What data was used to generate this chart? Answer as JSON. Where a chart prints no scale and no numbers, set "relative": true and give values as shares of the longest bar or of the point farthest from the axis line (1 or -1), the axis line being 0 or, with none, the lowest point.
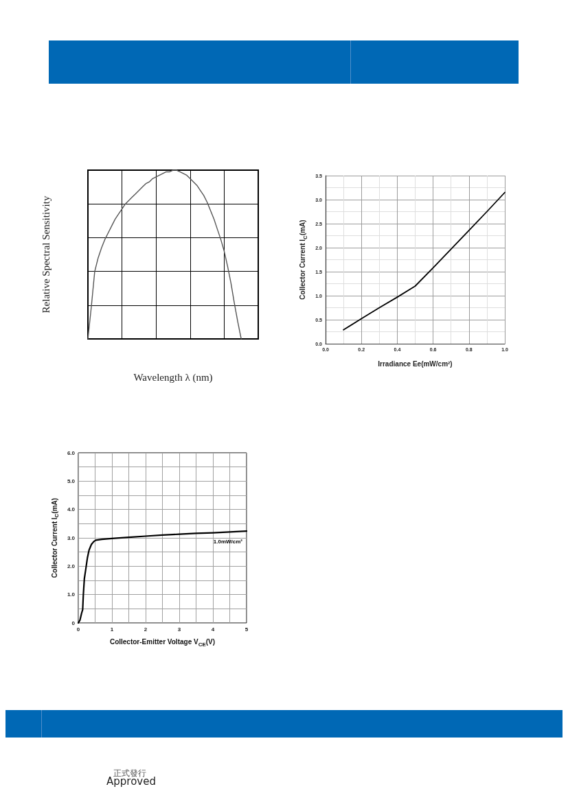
{
  "chart_data": [
    {
      "type": "line",
      "relative": true,
      "xlabel": "Wavelength λ (nm)",
      "ylabel": "Relative Spectral Sensitivity",
      "categories": [
        null,
        null,
        null,
        null,
        null,
        null,
        null,
        null,
        null,
        null,
        null,
        null,
        null,
        null,
        null,
        null,
        null,
        null,
        null,
        null,
        null,
        null,
        null,
        null,
        null,
        null,
        null,
        null,
        null,
        null,
        null,
        null,
        null,
        null,
        null,
        null,
        null,
        null,
        null,
        null,
        null,
        null,
        null,
        null,
        null,
        null,
        null,
        null,
        null,
        null,
        null
      ],
      "values": [
        0,
        0.19,
        0.4,
        0.48,
        0.54,
        0.59,
        0.63,
        0.67,
        0.71,
        0.74,
        0.77,
        0.8,
        0.82,
        0.84,
        0.86,
        0.88,
        0.9,
        0.92,
        0.93,
        0.95,
        0.96,
        0.97,
        0.98,
        0.99,
        0.99,
        1,
        1,
        0.99,
        0.98,
        0.97,
        0.95,
        0.93,
        0.91,
        0.88,
        0.85,
        0.81,
        0.76,
        0.71,
        0.65,
        0.59,
        0.52,
        0.43,
        0.33,
        0.21,
        0.1,
        0,
        null,
        null,
        null,
        null,
        null
      ],
      "color": "#555555",
      "grid": true,
      "marker": "none",
      "line_style": "solid"
    },
    {
      "type": "line",
      "xlabel": "Irradiance Ee(mW/cm²)",
      "ylabel": "Collector Current I$_{C}$(mA)",
      "x": [
        0.1,
        0.2,
        0.3,
        0.4,
        0.5,
        0.6,
        0.7,
        0.8,
        0.9,
        1.0
      ],
      "values": [
        0.29,
        0.52,
        0.75,
        0.97,
        1.2,
        1.58,
        1.97,
        2.36,
        2.75,
        3.15
      ],
      "color": "#000000",
      "xlim": [
        0,
        1
      ],
      "ylim": [
        0,
        3.5
      ],
      "xticks": [
        {
          "value": 0,
          "label": "0.0"
        },
        {
          "value": 0.1,
          "label": null
        },
        0.2,
        {
          "value": 0.3,
          "label": null
        },
        0.4,
        {
          "value": 0.5,
          "label": null
        },
        0.6,
        {
          "value": 0.7,
          "label": null
        },
        0.8,
        {
          "value": 0.9,
          "label": null
        },
        {
          "value": 1,
          "label": "1.0"
        }
      ],
      "yticks": [
        {
          "value": 0,
          "label": "0.0"
        },
        {
          "value": 0.25,
          "label": null
        },
        0.5,
        {
          "value": 0.75,
          "label": null
        },
        {
          "value": 1,
          "label": "1.0"
        },
        {
          "value": 1.25,
          "label": null
        },
        1.5,
        {
          "value": 1.75,
          "label": null
        },
        {
          "value": 2,
          "label": "2.0"
        },
        {
          "value": 2.25,
          "label": null
        },
        2.5,
        {
          "value": 2.75,
          "label": null
        },
        {
          "value": 3,
          "label": "3.0"
        },
        {
          "value": 3.25,
          "label": null
        },
        3.5
      ],
      "grid": true,
      "marker": "none",
      "line_style": "solid"
    },
    {
      "type": "line",
      "xlabel": "Collector-Emitter Voltage V$_{CE}$(V)",
      "ylabel": "Collector Current I$_{C}$(mA)",
      "x": [
        0,
        0.05,
        0.1,
        0.13,
        0.15,
        0.18,
        0.22,
        0.27,
        0.32,
        0.39,
        0.46,
        0.52,
        0.7,
        1,
        1.5,
        2,
        2.5,
        3,
        3.5,
        4,
        4.5,
        5
      ],
      "series": [
        {
          "name": "1.0mW/cm²",
          "color": "#000000",
          "values": [
            0,
            0.1,
            0.35,
            0.47,
            1.0,
            1.56,
            1.88,
            2.29,
            2.57,
            2.77,
            2.87,
            2.92,
            2.95,
            2.98,
            3.02,
            3.06,
            3.1,
            3.13,
            3.16,
            3.18,
            3.21,
            3.24
          ]
        }
      ],
      "xlim": [
        0,
        5
      ],
      "ylim": [
        0,
        6
      ],
      "xticks": [
        0,
        {
          "value": 0.5,
          "label": null
        },
        1,
        {
          "value": 1.5,
          "label": null
        },
        2,
        {
          "value": 2.5,
          "label": null
        },
        3,
        {
          "value": 3.5,
          "label": null
        },
        4,
        {
          "value": 4.5,
          "label": null
        },
        5
      ],
      "yticks": [
        0,
        {
          "value": 0.5,
          "label": null
        },
        {
          "value": 1,
          "label": "1.0"
        },
        {
          "value": 1.5,
          "label": null
        },
        {
          "value": 2,
          "label": "2.0"
        },
        {
          "value": 2.5,
          "label": null
        },
        {
          "value": 3,
          "label": "3.0"
        },
        {
          "value": 3.5,
          "label": null
        },
        {
          "value": 4,
          "label": "4.0"
        },
        {
          "value": 4.5,
          "label": null
        },
        {
          "value": 5,
          "label": "5.0"
        },
        {
          "value": 5.5,
          "label": null
        },
        {
          "value": 6,
          "label": "6.0"
        }
      ],
      "grid": true,
      "marker": "none",
      "line_style": "solid",
      "annotations": [
        "正式發行",
        "Approved"
      ]
    }
  ]
}
